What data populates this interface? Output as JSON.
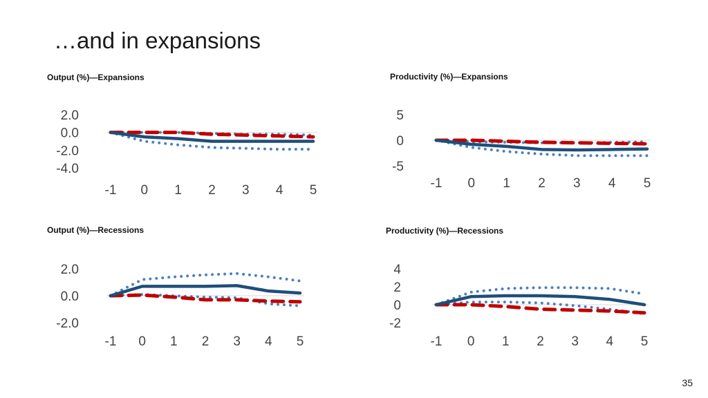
{
  "slide": {
    "title": "…and in expansions",
    "page_number": "35"
  },
  "colors": {
    "solid_line": "#1f4e79",
    "dotted_line": "#4a7fc1",
    "dashed_line": "#c00000",
    "zero_line": "#d9d9d9",
    "tick_text": "#444444"
  },
  "chart_data": [
    {
      "type": "line",
      "title": "Output (%)—Expansions",
      "x": [
        -1,
        0,
        1,
        2,
        3,
        4,
        5
      ],
      "ylim": [
        -4.0,
        2.0
      ],
      "yticks": [
        "2.0",
        "0.0",
        "-2.0",
        "-4.0"
      ],
      "xticks": [
        "-1",
        "0",
        "1",
        "2",
        "3",
        "4",
        "5"
      ],
      "series": [
        {
          "style": "solid",
          "values": [
            0.0,
            -0.5,
            -0.7,
            -1.0,
            -1.0,
            -1.0,
            -1.0
          ]
        },
        {
          "style": "dotted",
          "values": [
            0.0,
            0.0,
            0.0,
            -0.1,
            -0.2,
            -0.2,
            -0.3
          ]
        },
        {
          "style": "dotted",
          "values": [
            0.0,
            -1.0,
            -1.4,
            -1.7,
            -1.8,
            -1.9,
            -1.9
          ]
        },
        {
          "style": "dashed",
          "values": [
            0.0,
            0.0,
            0.0,
            -0.2,
            -0.3,
            -0.4,
            -0.5
          ]
        }
      ]
    },
    {
      "type": "line",
      "title": "Productivity (%)—Expansions",
      "x": [
        -1,
        0,
        1,
        2,
        3,
        4,
        5
      ],
      "ylim": [
        -5,
        5
      ],
      "yticks": [
        "5",
        "0",
        "-5"
      ],
      "xticks": [
        "-1",
        "0",
        "1",
        "2",
        "3",
        "4",
        "5"
      ],
      "series": [
        {
          "style": "solid",
          "values": [
            0.0,
            -0.8,
            -1.2,
            -1.8,
            -1.9,
            -1.8,
            -1.7
          ]
        },
        {
          "style": "dotted",
          "values": [
            0.0,
            -0.3,
            -0.4,
            -0.5,
            -0.5,
            -0.4,
            -0.3
          ]
        },
        {
          "style": "dotted",
          "values": [
            0.0,
            -1.4,
            -2.2,
            -2.7,
            -3.0,
            -3.0,
            -3.0
          ]
        },
        {
          "style": "dashed",
          "values": [
            0.0,
            0.0,
            -0.2,
            -0.4,
            -0.5,
            -0.6,
            -0.7
          ]
        }
      ]
    },
    {
      "type": "line",
      "title": "Output (%)—Recessions",
      "x": [
        -1,
        0,
        1,
        2,
        3,
        4,
        5
      ],
      "ylim": [
        -2.0,
        2.0
      ],
      "yticks": [
        "2.0",
        "0.0",
        "-2.0"
      ],
      "xticks": [
        "-1",
        "0",
        "1",
        "2",
        "3",
        "4",
        "5"
      ],
      "series": [
        {
          "style": "solid",
          "values": [
            0.0,
            0.7,
            0.7,
            0.7,
            0.75,
            0.35,
            0.2
          ]
        },
        {
          "style": "dotted",
          "values": [
            0.0,
            1.2,
            1.4,
            1.55,
            1.65,
            1.4,
            1.1
          ]
        },
        {
          "style": "dotted",
          "values": [
            0.0,
            0.1,
            0.0,
            -0.1,
            -0.15,
            -0.6,
            -0.75
          ]
        },
        {
          "style": "dashed",
          "values": [
            0.0,
            0.05,
            -0.1,
            -0.3,
            -0.3,
            -0.4,
            -0.45
          ]
        }
      ]
    },
    {
      "type": "line",
      "title": "Productivity (%)—Recessions",
      "x": [
        -1,
        0,
        1,
        2,
        3,
        4,
        5
      ],
      "ylim": [
        -2,
        4
      ],
      "yticks": [
        "4",
        "2",
        "0",
        "-2"
      ],
      "xticks": [
        "-1",
        "0",
        "1",
        "2",
        "3",
        "4",
        "5"
      ],
      "series": [
        {
          "style": "solid",
          "values": [
            0.0,
            0.9,
            1.0,
            1.0,
            0.9,
            0.6,
            0.0
          ]
        },
        {
          "style": "dotted",
          "values": [
            0.0,
            1.4,
            1.8,
            1.9,
            1.9,
            1.8,
            1.2
          ]
        },
        {
          "style": "dotted",
          "values": [
            0.0,
            0.3,
            0.3,
            0.2,
            -0.1,
            -0.5,
            -1.0
          ]
        },
        {
          "style": "dashed",
          "values": [
            0.0,
            0.0,
            -0.2,
            -0.5,
            -0.6,
            -0.7,
            -0.9
          ]
        }
      ]
    }
  ]
}
